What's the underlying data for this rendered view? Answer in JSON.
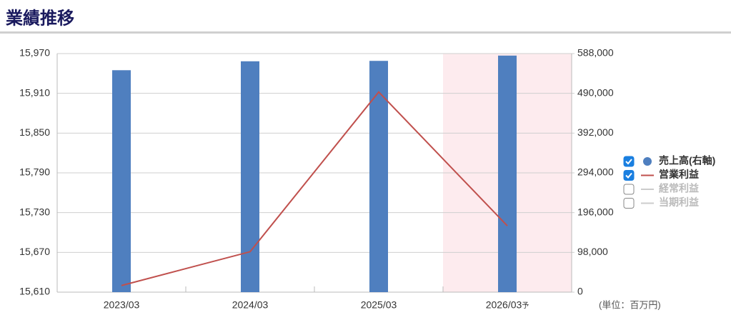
{
  "chart_data": {
    "type": "bar-line",
    "title": "業績推移",
    "categories": [
      "2023/03",
      "2024/03",
      "2025/03",
      "2026/03"
    ],
    "forecast_suffix": "予",
    "unit_label": "(単位：百万円)",
    "ylim": [
      15610,
      15970
    ],
    "yticks": [
      {
        "value": 15610,
        "label": "15,610"
      },
      {
        "value": 15670,
        "label": "15,670"
      },
      {
        "value": 15730,
        "label": "15,730"
      },
      {
        "value": 15790,
        "label": "15,790"
      },
      {
        "value": 15850,
        "label": "15,850"
      },
      {
        "value": 15910,
        "label": "15,910"
      },
      {
        "value": 15970,
        "label": "15,970"
      }
    ],
    "y2lim": [
      0,
      588000
    ],
    "y2ticks": [
      0,
      {
        "value": 98000,
        "label": "98,000"
      },
      {
        "value": 196000,
        "label": "196,000"
      },
      {
        "value": 294000,
        "label": "294,000"
      },
      {
        "value": 392000,
        "label": "392,000"
      },
      {
        "value": 490000,
        "label": "490,000"
      },
      {
        "value": 588000,
        "label": "588,000"
      }
    ],
    "grid": true,
    "legend": "right",
    "series": [
      {
        "name": "売上高(右軸)",
        "type": "bar",
        "axis": "y2",
        "color": "#4f7fbf",
        "visible": true,
        "values": [
          547000,
          569000,
          570000,
          583000
        ]
      },
      {
        "name": "営業利益",
        "type": "line",
        "color": "#c0504d",
        "visible": true,
        "values": [
          15620,
          15671,
          15912,
          15710
        ]
      },
      {
        "name": "経常利益",
        "type": "line",
        "color": "#cccccc",
        "visible": false,
        "values": [
          null,
          null,
          null,
          null
        ]
      },
      {
        "name": "当期利益",
        "type": "line",
        "color": "#cccccc",
        "visible": false,
        "values": [
          null,
          null,
          null,
          null
        ]
      }
    ]
  }
}
